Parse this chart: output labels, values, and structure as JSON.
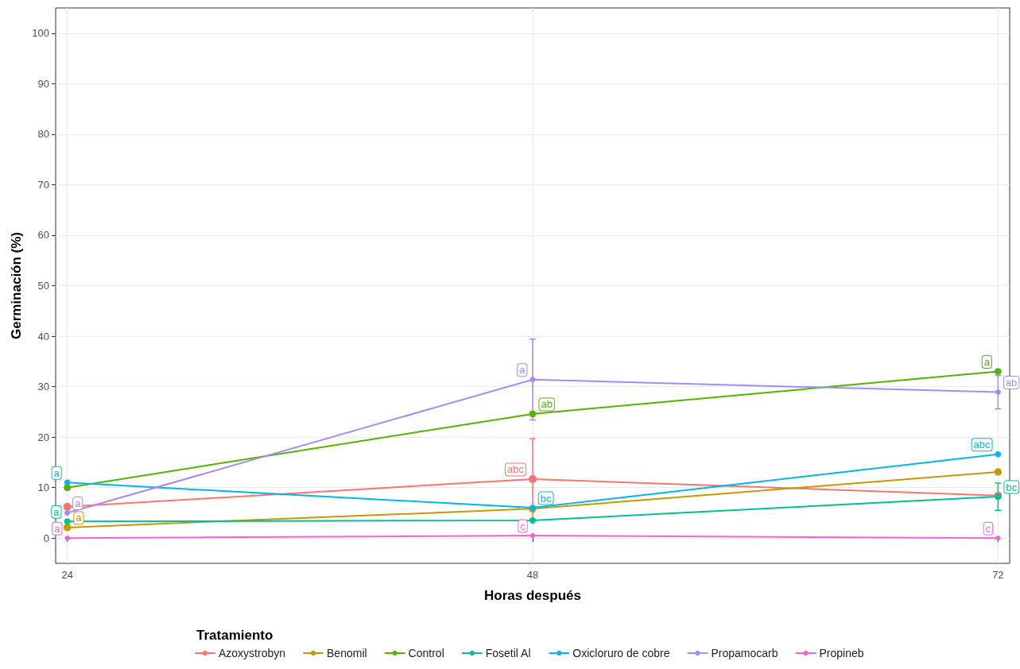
{
  "chart_data": {
    "type": "line",
    "xlabel": "Horas después",
    "ylabel": "Germinación (%)",
    "legend_title": "Tratamiento",
    "x": [
      24,
      48,
      72
    ],
    "xlim": [
      23.4,
      72.6
    ],
    "xticks": [
      24,
      48,
      72
    ],
    "ylim": [
      -5,
      105
    ],
    "yticks": [
      0,
      10,
      20,
      30,
      40,
      50,
      60,
      70,
      80,
      90,
      100
    ],
    "grid": true,
    "legend": "bottom",
    "marker": "circle",
    "line_style": "solid",
    "series": [
      {
        "name": "Azoxystrobyn",
        "color": "#f8766d",
        "values": [
          6.2,
          11.7,
          8.4
        ],
        "errors": [
          null,
          8,
          null
        ],
        "value_labels": [
          null,
          "abc",
          null
        ]
      },
      {
        "name": "Benomil",
        "color": "#c49a00",
        "values": [
          2.1,
          5.8,
          13.1
        ],
        "value_labels": [
          "a",
          null,
          null
        ]
      },
      {
        "name": "Control",
        "color": "#53b400",
        "values": [
          10,
          24.6,
          33
        ],
        "value_labels": [
          null,
          "ab",
          "a"
        ]
      },
      {
        "name": "Fosetil Al",
        "color": "#00c094",
        "values": [
          3.3,
          3.5,
          8.2
        ],
        "errors": [
          null,
          null,
          2.7
        ],
        "value_labels": [
          "a",
          null,
          "bc"
        ]
      },
      {
        "name": "Oxicloruro de cobre",
        "color": "#00b6eb",
        "values": [
          11,
          6,
          16.6
        ],
        "value_labels": [
          "a",
          "bc",
          "abc"
        ]
      },
      {
        "name": "Propamocarb",
        "color": "#a58aff",
        "values": [
          5,
          31.4,
          28.9
        ],
        "errors": [
          null,
          8,
          3.3
        ],
        "value_labels": [
          "a",
          "a",
          "ab"
        ]
      },
      {
        "name": "Propineb",
        "color": "#fb61d7",
        "values": [
          0,
          0.5,
          0
        ],
        "value_labels": [
          "a",
          "c",
          "c"
        ]
      }
    ]
  }
}
